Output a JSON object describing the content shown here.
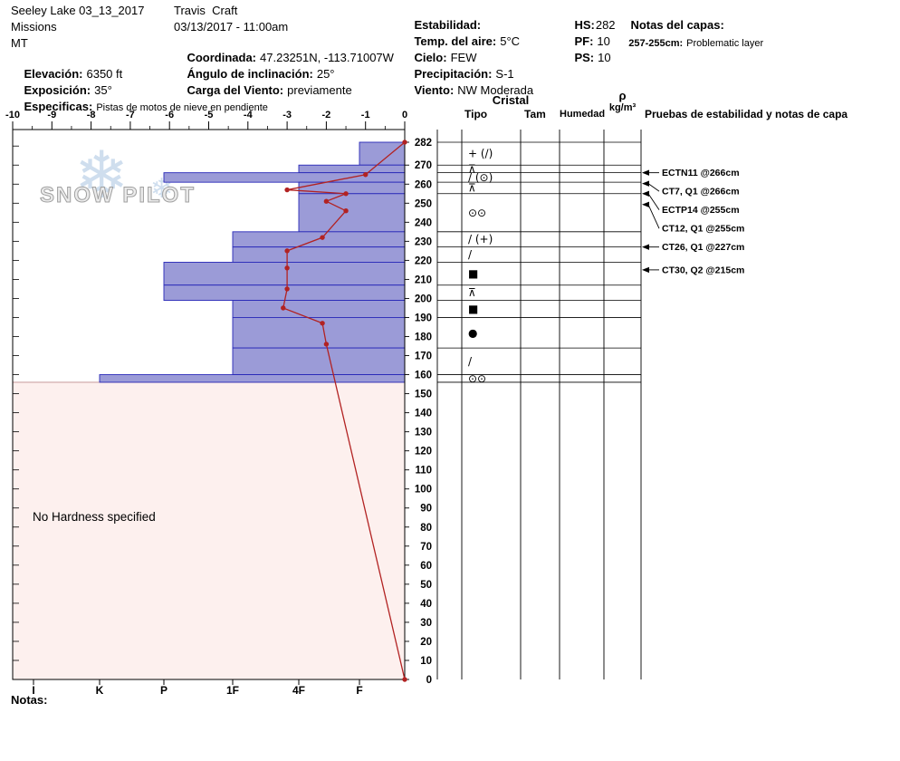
{
  "header": {
    "location": {
      "title": "Seeley Lake 03_13_2017",
      "region": "Missions",
      "state": "MT",
      "elevation_label": "Elevación:",
      "elevation_value": "6350 ft",
      "aspect_label": "Exposición:",
      "aspect_value": "35°",
      "specifics_label": "Especificas:",
      "specifics_value": "Pistas de motos de nieve en pendiente"
    },
    "observer": {
      "name": "Travis  Craft",
      "datetime": "03/13/2017 - 11:00am",
      "coordinates_label": "Coordinada:",
      "coordinates_value": "47.23251N, -113.71007W",
      "incline_label": "Ángulo de inclinación:",
      "incline_value": "25°",
      "wind_loading_label": "Carga del Viento:",
      "wind_loading_value": "previamente"
    },
    "conditions": {
      "stability_label": "Estabilidad:",
      "air_temp_label": "Temp. del aire:",
      "air_temp_value": "5°C",
      "sky_label": "Cielo:",
      "sky_value": "FEW",
      "precip_label": "Precipitación:",
      "precip_value": "S-1",
      "wind_label": "Viento:",
      "wind_value": "NW Moderada"
    },
    "snowpack": {
      "hs_label": "HS:",
      "hs_value": "282",
      "pf_label": "PF:",
      "pf_value": "10",
      "ps_label": "PS:",
      "ps_value": "10"
    },
    "layer_notes": {
      "title": "Notas del capas:",
      "note_range": "257-255cm:",
      "note_text": "Problematic layer"
    }
  },
  "watermark": {
    "text": "SNOW PILOT",
    "snowflake": "❄"
  },
  "panel": {
    "cristal_header": "Cristal",
    "tipo_header": "Tipo",
    "tam_header": "Tam",
    "humedad_header": "Humedad",
    "rho_symbol": "ρ",
    "rho_units": "kg/m³",
    "tests_header": "Pruebas de estabilidad y notas de capa"
  },
  "footer": {
    "notes_label": "Notas:"
  },
  "chart_data": {
    "type": "snow-profile",
    "temperature_axis": {
      "unit": "°C",
      "min": -10,
      "max": 0,
      "tick_labels": [
        "-10",
        "-9",
        "-8",
        "-7",
        "-6",
        "-5",
        "-4",
        "-3",
        "-2",
        "-1",
        "0"
      ]
    },
    "depth_axis": {
      "unit": "cm",
      "surface_cm": 282,
      "tick_labels": [
        "282",
        "270",
        "260",
        "250",
        "240",
        "230",
        "220",
        "210",
        "200",
        "190",
        "180",
        "170",
        "160",
        "150",
        "140",
        "130",
        "120",
        "110",
        "100",
        "90",
        "80",
        "70",
        "60",
        "50",
        "40",
        "30",
        "20",
        "10",
        "0"
      ]
    },
    "hardness_axis": {
      "tick_labels": [
        "I",
        "K",
        "P",
        "1F",
        "4F",
        "F"
      ]
    },
    "layers": [
      {
        "top_cm": 282,
        "bottom_cm": 270,
        "hardness": "F",
        "grain_glyph": "+ (/)",
        "grain_form": "PP(DF)"
      },
      {
        "top_cm": 270,
        "bottom_cm": 266,
        "hardness": "4F",
        "grain_glyph": "⊼",
        "grain_form": "SH"
      },
      {
        "top_cm": 266,
        "bottom_cm": 261,
        "hardness": "P",
        "grain_glyph": "/ (⊙)",
        "grain_form": "DF(MF)"
      },
      {
        "top_cm": 261,
        "bottom_cm": 255,
        "hardness": "4F",
        "grain_glyph": "⊼",
        "grain_form": "SH"
      },
      {
        "top_cm": 255,
        "bottom_cm": 235,
        "hardness": "4F",
        "grain_glyph": "⊙⊙",
        "grain_form": "MF"
      },
      {
        "top_cm": 235,
        "bottom_cm": 227,
        "hardness": "1F",
        "grain_glyph": "/ (+)",
        "grain_form": "DF(PP)"
      },
      {
        "top_cm": 227,
        "bottom_cm": 219,
        "hardness": "1F",
        "grain_glyph": "/",
        "grain_form": "DF"
      },
      {
        "top_cm": 219,
        "bottom_cm": 207,
        "hardness": "P",
        "grain_glyph": "■",
        "grain_form": "FC"
      },
      {
        "top_cm": 207,
        "bottom_cm": 199,
        "hardness": "P",
        "grain_glyph": "⊼",
        "grain_form": "SH"
      },
      {
        "top_cm": 199,
        "bottom_cm": 190,
        "hardness": "1F",
        "grain_glyph": "■",
        "grain_form": "FC"
      },
      {
        "top_cm": 190,
        "bottom_cm": 174,
        "hardness": "1F",
        "grain_glyph": "●",
        "grain_form": "RG"
      },
      {
        "top_cm": 174,
        "bottom_cm": 160,
        "hardness": "1F",
        "grain_glyph": "/",
        "grain_form": "DF"
      },
      {
        "top_cm": 160,
        "bottom_cm": 156,
        "hardness": "K",
        "grain_glyph": "⊙⊙",
        "grain_form": "MF"
      }
    ],
    "temperature_profile": [
      {
        "temp_c": 0,
        "depth_cm": 282
      },
      {
        "temp_c": -1,
        "depth_cm": 265
      },
      {
        "temp_c": -3,
        "depth_cm": 257
      },
      {
        "temp_c": -1.5,
        "depth_cm": 255
      },
      {
        "temp_c": -2,
        "depth_cm": 251
      },
      {
        "temp_c": -1.5,
        "depth_cm": 246
      },
      {
        "temp_c": -2.1,
        "depth_cm": 232
      },
      {
        "temp_c": -3,
        "depth_cm": 225
      },
      {
        "temp_c": -3,
        "depth_cm": 216
      },
      {
        "temp_c": -3,
        "depth_cm": 205
      },
      {
        "temp_c": -3.1,
        "depth_cm": 195
      },
      {
        "temp_c": -2.1,
        "depth_cm": 187
      },
      {
        "temp_c": -2,
        "depth_cm": 176
      },
      {
        "temp_c": 0,
        "depth_cm": 0
      }
    ],
    "no_hardness_region": {
      "label": "No Hardness specified",
      "top_cm": 156,
      "bottom_cm": 0
    },
    "stability_tests": [
      {
        "label": "ECTN11 @266cm",
        "depth_cm": 266
      },
      {
        "label": "CT7, Q1 @266cm",
        "depth_cm": 266
      },
      {
        "label": "ECTP14 @255cm",
        "depth_cm": 255
      },
      {
        "label": "CT12, Q1 @255cm",
        "depth_cm": 255
      },
      {
        "label": "CT26, Q1 @227cm",
        "depth_cm": 227
      },
      {
        "label": "CT30, Q2 @215cm",
        "depth_cm": 215
      }
    ],
    "colors": {
      "bar_fill": "#9b9bd7",
      "bar_stroke": "#2929b8",
      "temp_line": "#b22222",
      "no_hardness_fill": "#fdf0ee",
      "no_hardness_stroke": "#c89a9a",
      "watermark_blue": "#c7d9ec"
    }
  }
}
